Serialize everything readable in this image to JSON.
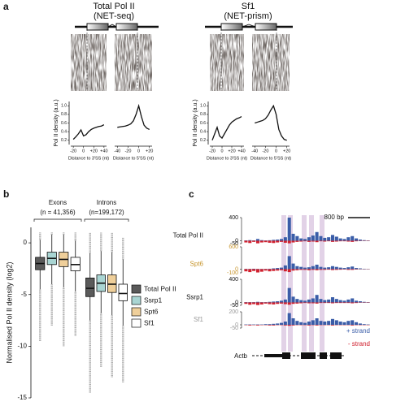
{
  "panel_a": {
    "label": "a",
    "ylabel": "Pol II density (a.u.)",
    "ylim": [
      0.1,
      1.1
    ],
    "yticks": [
      0.2,
      0.4,
      0.6,
      0.8,
      {
        "value": 1,
        "label": "1.0"
      }
    ],
    "columns": [
      {
        "title": "Total Pol II",
        "subtitle": "(NET-seq)",
        "profiles": [
          {
            "xlabel": "Distance to 3'SS (nt)",
            "xlim": [
              -25,
              45
            ],
            "xticks": [
              -20,
              0,
              {
                "value": 20,
                "label": "+20"
              },
              {
                "value": 40,
                "label": "+40"
              }
            ],
            "x": [
              -20,
              -15,
              -10,
              -5,
              0,
              5,
              10,
              15,
              20,
              25,
              30,
              35,
              40
            ],
            "y": [
              0.22,
              0.28,
              0.35,
              0.44,
              0.3,
              0.33,
              0.4,
              0.45,
              0.48,
              0.5,
              0.52,
              0.53,
              0.56
            ]
          },
          {
            "xlabel": "Distance to 5'SS (nt)",
            "xlim": [
              -45,
              25
            ],
            "xticks": [
              -40,
              -20,
              0,
              {
                "value": 20,
                "label": "+20"
              }
            ],
            "x": [
              -40,
              -35,
              -30,
              -25,
              -20,
              -15,
              -10,
              -5,
              0,
              5,
              10,
              15,
              20
            ],
            "y": [
              0.5,
              0.51,
              0.52,
              0.53,
              0.55,
              0.58,
              0.65,
              0.8,
              1.0,
              0.75,
              0.55,
              0.48,
              0.45
            ]
          }
        ]
      },
      {
        "title": "Sf1",
        "subtitle": "(NET-prism)",
        "profiles": [
          {
            "xlabel": "Distance to 3'SS (nt)",
            "xlim": [
              -25,
              45
            ],
            "xticks": [
              -20,
              0,
              {
                "value": 20,
                "label": "+20"
              },
              {
                "value": 40,
                "label": "+40"
              }
            ],
            "x": [
              -20,
              -15,
              -10,
              -5,
              0,
              5,
              10,
              15,
              20,
              25,
              30,
              35,
              40
            ],
            "y": [
              0.2,
              0.35,
              0.5,
              0.3,
              0.25,
              0.35,
              0.45,
              0.55,
              0.62,
              0.66,
              0.7,
              0.72,
              0.75
            ]
          },
          {
            "xlabel": "Distance to 5'SS (nt)",
            "xlim": [
              -45,
              25
            ],
            "xticks": [
              -40,
              -20,
              0,
              {
                "value": 20,
                "label": "+20"
              }
            ],
            "x": [
              -40,
              -35,
              -30,
              -25,
              -20,
              -15,
              -10,
              -5,
              0,
              5,
              10,
              15,
              20
            ],
            "y": [
              0.6,
              0.62,
              0.64,
              0.66,
              0.7,
              0.78,
              0.9,
              1.0,
              0.8,
              0.45,
              0.3,
              0.22,
              0.2
            ]
          }
        ]
      }
    ]
  },
  "panel_b": {
    "label": "b",
    "ylabel": "Normalised Pol II density (log2)",
    "ylim": [
      -15,
      1.5
    ],
    "yticks": [
      0,
      -5,
      -10,
      -15
    ],
    "groups": [
      {
        "title": "Exons",
        "n": "(n = 41,356)"
      },
      {
        "title": "Introns",
        "n": "(n=199,172)"
      }
    ],
    "series": [
      {
        "name": "Total Pol II",
        "color": "#5a5a5a",
        "out_low": [
          -9.5,
          -14.5
        ],
        "whisker_low": [
          -4.5,
          -7.5
        ],
        "q1": [
          -2.6,
          -5.2
        ],
        "median": [
          -2,
          -4.4
        ],
        "q3": [
          -1.4,
          -3.4
        ],
        "whisker_high": [
          0.3,
          -1
        ],
        "out_high": [
          1,
          1
        ]
      },
      {
        "name": "Ssrp1",
        "color": "#a9d5d3",
        "out_low": [
          -8,
          -12
        ],
        "whisker_low": [
          -4,
          -6.8
        ],
        "q1": [
          -2.1,
          -4.7
        ],
        "median": [
          -1.5,
          -3.9
        ],
        "q3": [
          -0.9,
          -3.1
        ],
        "whisker_high": [
          0.8,
          -0.8
        ],
        "out_high": [
          1,
          1
        ]
      },
      {
        "name": "Spt6",
        "color": "#efcf9a",
        "out_low": [
          -10,
          -13
        ],
        "whisker_low": [
          -4.3,
          -7
        ],
        "q1": [
          -2.3,
          -4.8
        ],
        "median": [
          -1.6,
          -4
        ],
        "q3": [
          -0.9,
          -3.1
        ],
        "whisker_high": [
          0.8,
          -0.9
        ],
        "out_high": [
          1,
          1
        ]
      },
      {
        "name": "Sf1",
        "color": "#ffffff",
        "out_low": [
          -9,
          -13.5
        ],
        "whisker_low": [
          -4.7,
          -8
        ],
        "q1": [
          -2.7,
          -5.6
        ],
        "median": [
          -2.1,
          -4.9
        ],
        "q3": [
          -1.4,
          -4
        ],
        "whisker_high": [
          0.2,
          -1.6
        ],
        "out_high": [
          1,
          0.5
        ]
      }
    ]
  },
  "panel_c": {
    "label": "c",
    "scale_label": "800 bp",
    "gene": "Actb",
    "plus_label": "+ strand",
    "minus_label": "- strand",
    "plus_color": "#3a5da8",
    "minus_color": "#d0202e",
    "tracks": [
      {
        "name": "Total Pol II",
        "name_color": "#111111",
        "ylim": [
          -50,
          400
        ],
        "yticks": [
          400,
          0,
          -50
        ],
        "plus": [
          5,
          10,
          5,
          30,
          10,
          5,
          8,
          15,
          20,
          30,
          60,
          400,
          120,
          80,
          40,
          30,
          60,
          90,
          150,
          80,
          50,
          60,
          100,
          70,
          40,
          30,
          60,
          80,
          40,
          20,
          10,
          5
        ],
        "minus": [
          -30,
          -40,
          -20,
          -45,
          -30,
          -25,
          -35,
          -40,
          -30,
          -20,
          -35,
          -45,
          -30,
          -20,
          -15,
          -10,
          -20,
          -15,
          -25,
          -10,
          -15,
          -10,
          -20,
          -15,
          -10,
          -10,
          -15,
          -20,
          -10,
          -5,
          -5,
          -5
        ]
      },
      {
        "name": "Spt6",
        "name_color": "#c8962e",
        "ylim": [
          -100,
          600
        ],
        "yticks": [
          600,
          0,
          -100
        ],
        "plus": [
          5,
          5,
          10,
          5,
          5,
          5,
          10,
          20,
          30,
          40,
          100,
          350,
          150,
          80,
          60,
          40,
          50,
          80,
          120,
          60,
          40,
          50,
          80,
          60,
          40,
          30,
          50,
          70,
          30,
          20,
          10,
          5
        ],
        "minus": [
          -60,
          -80,
          -50,
          -90,
          -70,
          -40,
          -60,
          -50,
          -40,
          -30,
          -60,
          -80,
          -40,
          -30,
          -20,
          -20,
          -30,
          -20,
          -30,
          -20,
          -20,
          -15,
          -25,
          -20,
          -15,
          -10,
          -20,
          -20,
          -10,
          -5,
          -5,
          -5
        ]
      },
      {
        "name": "Ssrp1",
        "name_color": "#111111",
        "ylim": [
          -50,
          400
        ],
        "yticks": [
          400,
          0,
          -50
        ],
        "plus": [
          5,
          5,
          5,
          10,
          5,
          5,
          10,
          15,
          20,
          30,
          50,
          250,
          100,
          60,
          40,
          30,
          50,
          70,
          130,
          60,
          40,
          50,
          90,
          60,
          40,
          30,
          50,
          70,
          30,
          20,
          10,
          5
        ],
        "minus": [
          -25,
          -40,
          -30,
          -45,
          -35,
          -20,
          -30,
          -35,
          -25,
          -20,
          -30,
          -40,
          -25,
          -20,
          -15,
          -10,
          -15,
          -15,
          -20,
          -10,
          -10,
          -10,
          -15,
          -10,
          -10,
          -10,
          -10,
          -15,
          -10,
          -5,
          -5,
          -5
        ]
      },
      {
        "name": "Sf1",
        "name_color": "#999999",
        "ylim": [
          -50,
          200
        ],
        "yticks": [
          200,
          0,
          -50
        ],
        "plus": [
          5,
          5,
          5,
          5,
          5,
          10,
          10,
          15,
          20,
          30,
          50,
          180,
          100,
          60,
          40,
          30,
          50,
          70,
          100,
          60,
          50,
          60,
          90,
          70,
          50,
          40,
          60,
          70,
          40,
          20,
          10,
          5
        ],
        "minus": [
          -5,
          -10,
          -5,
          -10,
          -5,
          -5,
          -10,
          -10,
          -5,
          -5,
          -10,
          -15,
          -10,
          -5,
          -5,
          -5,
          -10,
          -5,
          -10,
          -5,
          -5,
          -5,
          -10,
          -5,
          -5,
          -5,
          -5,
          -10,
          -5,
          -5,
          -5,
          -5
        ]
      }
    ]
  }
}
